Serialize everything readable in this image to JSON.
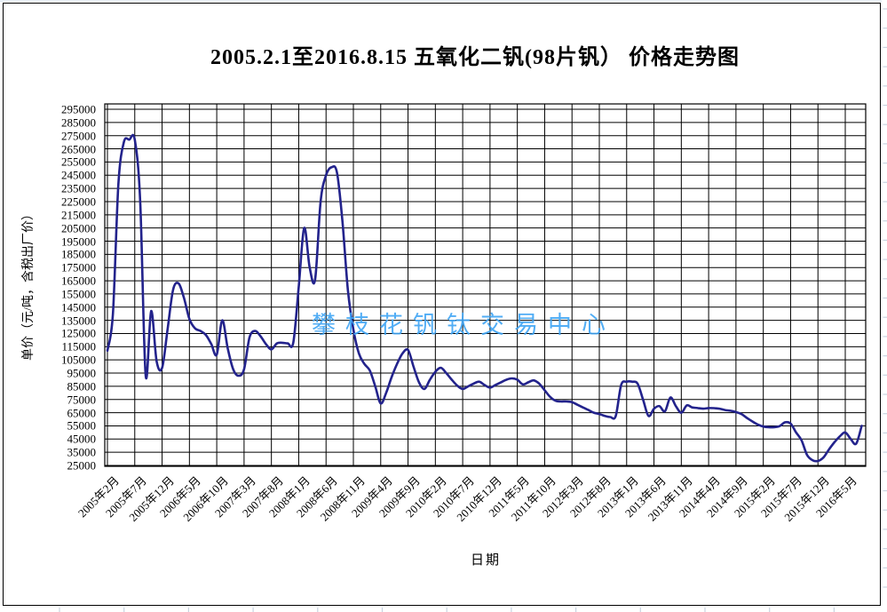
{
  "header": {
    "title": "2005.2.1至2016.8.15  五氧化二钒(98片钒） 价格走势图"
  },
  "watermark": {
    "text": "攀枝花钒钛交易中心",
    "color": "#3FA5F5"
  },
  "chart_data": {
    "type": "line",
    "title": "2005.2.1至2016.8.15  五氧化二钒(98片钒） 价格走势图",
    "xlabel": "日期",
    "ylabel": "单价（元/吨，含税出厂价）",
    "ylim": [
      25000,
      295000
    ],
    "ytick_step": 10000,
    "grid": true,
    "legend_position": "none",
    "line_color": "#23238C",
    "series_name": "五氧化二钒(98片钒)出厂价",
    "x_start": "2005年2月",
    "x_end": "2016年8月",
    "x_interval": "monthly",
    "x_tick_every_months": 5,
    "x_tick_labels": [
      "2005年2月",
      "2005年7月",
      "2005年12月",
      "2006年5月",
      "2006年10月",
      "2007年3月",
      "2007年8月",
      "2008年1月",
      "2008年6月",
      "2008年11月",
      "2009年4月",
      "2009年9月",
      "2010年2月",
      "2010年7月",
      "2010年12月",
      "2011年5月",
      "2011年10月",
      "2012年3月",
      "2012年8月",
      "2013年1月",
      "2013年6月",
      "2013年11月",
      "2014年4月",
      "2014年9月",
      "2015年2月",
      "2015年7月",
      "2015年12月",
      "2016年5月"
    ],
    "values": [
      112000,
      140000,
      238000,
      270000,
      272000,
      272000,
      225000,
      93000,
      142000,
      104000,
      99000,
      128000,
      158000,
      163000,
      152000,
      136000,
      129000,
      127000,
      124000,
      117000,
      109000,
      135000,
      114000,
      98000,
      93000,
      98000,
      122000,
      127000,
      123000,
      117000,
      113000,
      117500,
      118000,
      117500,
      118000,
      160000,
      205000,
      175000,
      166000,
      225000,
      245000,
      251000,
      247000,
      210000,
      158000,
      128000,
      110000,
      102000,
      97000,
      85000,
      72000,
      80000,
      92000,
      102000,
      110000,
      112500,
      100000,
      88000,
      83000,
      90000,
      96000,
      99000,
      95000,
      90000,
      85500,
      83000,
      85000,
      87000,
      88500,
      86000,
      84000,
      86000,
      88000,
      90000,
      91000,
      90000,
      86500,
      88000,
      89500,
      87000,
      82000,
      77000,
      74000,
      73500,
      73500,
      73000,
      71000,
      69000,
      67000,
      65000,
      64000,
      62500,
      61700,
      62500,
      86000,
      88500,
      88500,
      87000,
      75000,
      62500,
      68000,
      70000,
      66000,
      76500,
      70000,
      65000,
      70500,
      69000,
      68500,
      68000,
      68500,
      68400,
      68000,
      67000,
      66500,
      65500,
      64000,
      61000,
      58300,
      56000,
      54500,
      54000,
      54000,
      54800,
      57700,
      56800,
      50000,
      44000,
      33000,
      29000,
      28400,
      31000,
      37000,
      42500,
      47000,
      50000,
      45000,
      41500,
      55000
    ]
  }
}
